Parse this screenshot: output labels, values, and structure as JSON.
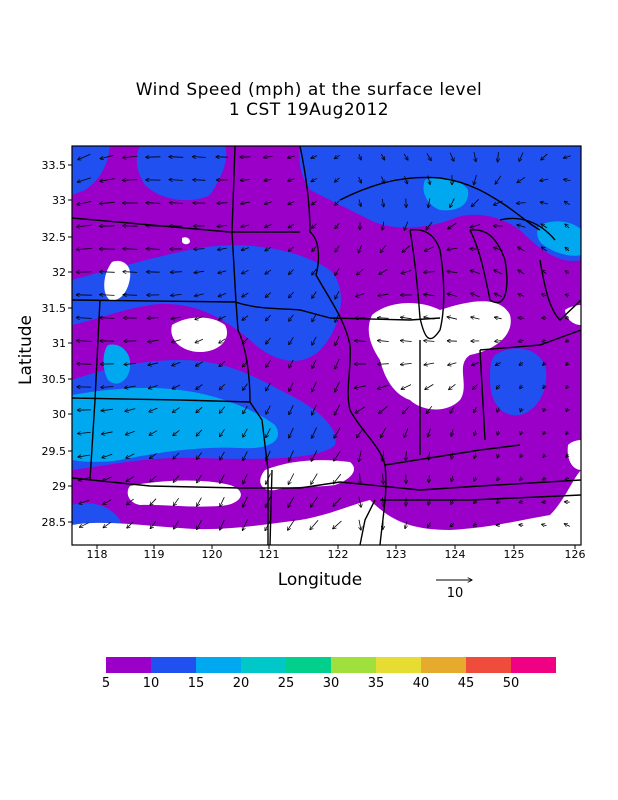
{
  "title_line1": "Wind Speed (mph) at the surface level",
  "title_line2": "1 CST 19Aug2012",
  "x_axis_label": "Longitude",
  "y_axis_label": "Latitude",
  "x_ticks": [
    "118",
    "119",
    "120",
    "121",
    "122",
    "123",
    "124",
    "125",
    "126"
  ],
  "y_ticks": [
    "33.5",
    "33",
    "32.5",
    "32",
    "31.5",
    "31",
    "30.5",
    "30",
    "29.5",
    "29",
    "28.5"
  ],
  "reference_vector_label": "10",
  "colorbar": {
    "colors": [
      "#9a00c8",
      "#2050f0",
      "#00a8f0",
      "#00c8c8",
      "#00d08c",
      "#a0e03c",
      "#e6dc32",
      "#e6aa2c",
      "#f04c3c",
      "#f00082"
    ],
    "labels": [
      "5",
      "10",
      "15",
      "20",
      "25",
      "30",
      "35",
      "40",
      "45",
      "50"
    ]
  }
}
